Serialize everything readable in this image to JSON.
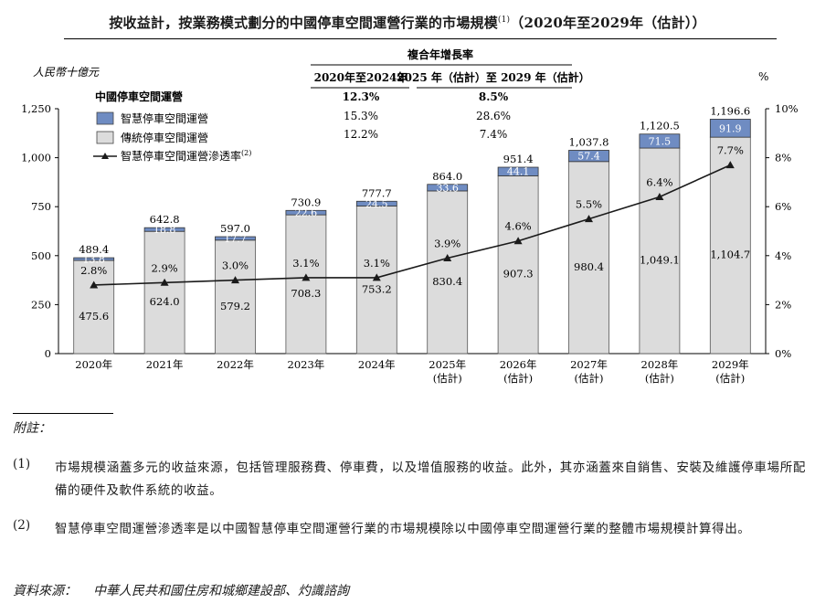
{
  "title": {
    "text": "按收益計，按業務模式劃分的中國停車空間運營行業的市場規模",
    "note_mark": "(1)",
    "suffix": "（2020年至2029年（估計））"
  },
  "colors": {
    "smart": "#6f8cc2",
    "traditional": "#dcdcdc",
    "line": "#1a1a1a"
  },
  "chart_data": {
    "type": "bar",
    "stacked": true,
    "categories": [
      "2020年",
      "2021年",
      "2022年",
      "2023年",
      "2024年",
      "2025年\n(估計)",
      "2026年\n(估計)",
      "2027年\n(估計)",
      "2028年\n(估計)",
      "2029年\n(估計)"
    ],
    "y_unit_label": "人民幣十億元",
    "y2_unit_label": "%",
    "ylim": [
      0,
      1250
    ],
    "yticks": [
      "0",
      "250",
      "500",
      "750",
      "1,000",
      "1,250"
    ],
    "y2lim": [
      0,
      10
    ],
    "y2ticks": [
      "0%",
      "2%",
      "4%",
      "6%",
      "8%",
      "10%"
    ],
    "legend_title": "中國停車空間運營",
    "series": [
      {
        "name": "傳統停車空間運營",
        "values": [
          475.6,
          624.0,
          579.2,
          708.3,
          753.2,
          830.4,
          907.3,
          980.4,
          1049.1,
          1104.7
        ],
        "labels": [
          "475.6",
          "624.0",
          "579.2",
          "708.3",
          "753.2",
          "830.4",
          "907.3",
          "980.4",
          "1,049.1",
          "1,104.7"
        ]
      },
      {
        "name": "智慧停車空間運營",
        "values": [
          13.8,
          18.8,
          17.7,
          22.6,
          24.5,
          33.6,
          44.1,
          57.4,
          71.5,
          91.9
        ],
        "labels": [
          "13.8",
          "18.8",
          "17.7",
          "22.6",
          "24.5",
          "33.6",
          "44.1",
          "57.4",
          "71.5",
          "91.9"
        ]
      }
    ],
    "totals": [
      489.4,
      642.8,
      597.0,
      730.9,
      777.7,
      864.0,
      951.4,
      1037.8,
      1120.5,
      1196.6
    ],
    "total_labels": [
      "489.4",
      "642.8",
      "597.0",
      "730.9",
      "777.7",
      "864.0",
      "951.4",
      "1,037.8",
      "1,120.5",
      "1,196.6"
    ],
    "line_series": {
      "name": "智慧停車空間運營滲透率",
      "name_note": "(2)",
      "values": [
        2.8,
        2.9,
        3.0,
        3.1,
        3.1,
        3.9,
        4.6,
        5.5,
        6.4,
        7.7
      ],
      "labels": [
        "2.8%",
        "2.9%",
        "3.0%",
        "3.1%",
        "3.1%",
        "3.9%",
        "4.6%",
        "5.5%",
        "6.4%",
        "7.7%"
      ]
    },
    "cagr_table": {
      "title": "複合年增長率",
      "columns": [
        "2020年至2024年",
        "2025 年（估計）至 2029 年（估計）"
      ],
      "rows": [
        [
          "12.3%",
          "8.5%"
        ],
        [
          "15.3%",
          "28.6%"
        ],
        [
          "12.2%",
          "7.4%"
        ]
      ]
    }
  },
  "notes": {
    "heading": "附註：",
    "items": [
      {
        "num": "(1)",
        "text": "市場規模涵蓋多元的收益來源，包括管理服務費、停車費，以及增值服務的收益。此外，其亦涵蓋來自銷售、安裝及維護停車場所配備的硬件及軟件系統的收益。"
      },
      {
        "num": "(2)",
        "text": "智慧停車空間運營滲透率是以中國智慧停車空間運營行業的市場規模除以中國停車空間運營行業的整體市場規模計算得出。"
      }
    ],
    "source_label": "資料來源：",
    "source_text": "中華人民共和國住房和城鄉建設部、灼識諮詢"
  }
}
